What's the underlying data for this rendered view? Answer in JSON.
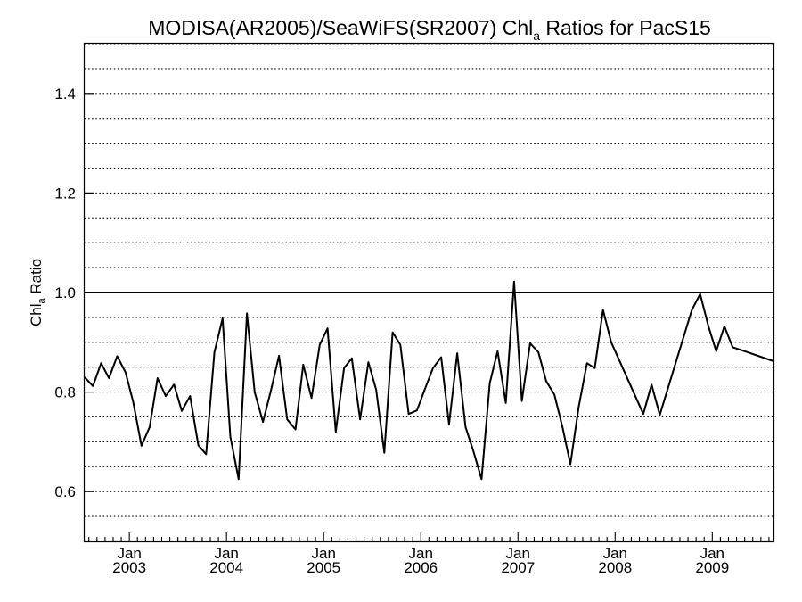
{
  "chart_data": {
    "type": "line",
    "title_main": "MODISA(AR2005)/SeaWiFS(SR2007)  Chl",
    "title_sub": "a",
    "title_tail": " Ratios for PacS15",
    "ylabel_main": "Chl",
    "ylabel_sub": "a",
    "ylabel_tail": " Ratio",
    "xlim": [
      2002.54,
      2009.63
    ],
    "ylim": [
      0.5,
      1.5
    ],
    "yticks": [
      0.6,
      0.8,
      1.0,
      1.2,
      1.4
    ],
    "ytick_labels": [
      "0.6",
      "0.8",
      "1.0",
      "1.2",
      "1.4"
    ],
    "ygrid": [
      0.55,
      0.6,
      0.65,
      0.7,
      0.75,
      0.8,
      0.85,
      0.9,
      0.95,
      1.05,
      1.1,
      1.15,
      1.2,
      1.25,
      1.3,
      1.35,
      1.4,
      1.45,
      1.5
    ],
    "reference_line": 1.0,
    "xticks": [
      {
        "x": 2003.0,
        "month": "Jan",
        "year": "2003"
      },
      {
        "x": 2004.0,
        "month": "Jan",
        "year": "2004"
      },
      {
        "x": 2005.0,
        "month": "Jan",
        "year": "2005"
      },
      {
        "x": 2006.0,
        "month": "Jan",
        "year": "2006"
      },
      {
        "x": 2007.0,
        "month": "Jan",
        "year": "2007"
      },
      {
        "x": 2008.0,
        "month": "Jan",
        "year": "2008"
      },
      {
        "x": 2009.0,
        "month": "Jan",
        "year": "2009"
      }
    ],
    "series": [
      {
        "x": [
          2002.54,
          2002.625,
          2002.71,
          2002.79,
          2002.875,
          2002.96,
          2003.04,
          2003.125,
          2003.21,
          2003.29,
          2003.375,
          2003.46,
          2003.54,
          2003.625,
          2003.71,
          2003.79,
          2003.875,
          2003.96,
          2004.04,
          2004.125,
          2004.21,
          2004.29,
          2004.375,
          2004.46,
          2004.54,
          2004.625,
          2004.71,
          2004.79,
          2004.875,
          2004.96,
          2005.04,
          2005.125,
          2005.21,
          2005.29,
          2005.375,
          2005.46,
          2005.54,
          2005.625,
          2005.71,
          2005.79,
          2005.875,
          2005.96,
          2006.04,
          2006.125,
          2006.21,
          2006.29,
          2006.375,
          2006.46,
          2006.54,
          2006.625,
          2006.71,
          2006.79,
          2006.875,
          2006.96,
          2007.04,
          2007.125,
          2007.21,
          2007.29,
          2007.375,
          2007.46,
          2007.54,
          2007.625,
          2007.71,
          2007.79,
          2007.875,
          2007.96,
          2008.29,
          2008.375,
          2008.46,
          2008.79,
          2008.875,
          2008.96,
          2009.04,
          2009.125,
          2009.21,
          2009.29,
          2009.63
        ],
        "y": [
          0.83,
          0.812,
          0.858,
          0.828,
          0.872,
          0.84,
          0.78,
          0.692,
          0.73,
          0.828,
          0.792,
          0.815,
          0.762,
          0.792,
          0.693,
          0.675,
          0.88,
          0.948,
          0.71,
          0.625,
          0.958,
          0.8,
          0.74,
          0.805,
          0.873,
          0.745,
          0.725,
          0.855,
          0.788,
          0.895,
          0.928,
          0.72,
          0.848,
          0.868,
          0.745,
          0.86,
          0.805,
          0.678,
          0.92,
          0.895,
          0.756,
          0.763,
          0.805,
          0.848,
          0.87,
          0.735,
          0.878,
          0.73,
          0.682,
          0.625,
          0.818,
          0.882,
          0.778,
          1.022,
          0.782,
          0.898,
          0.88,
          0.822,
          0.795,
          0.728,
          0.655,
          0.77,
          0.858,
          0.848,
          0.965,
          0.9,
          0.756,
          0.815,
          0.754,
          0.965,
          0.997,
          0.932,
          0.882,
          0.932,
          0.89,
          0.885,
          0.862
        ]
      }
    ]
  }
}
